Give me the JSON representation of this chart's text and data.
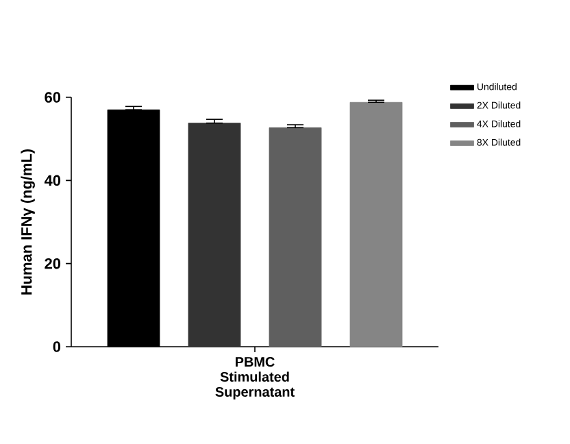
{
  "chart_data": {
    "type": "bar",
    "ylabel": "Human IFNγ (ng/mL)",
    "categories": [
      "PBMC Stimulated Supernatant"
    ],
    "series": [
      {
        "name": "Undiluted",
        "color": "#000000",
        "values": [
          57.0
        ],
        "errors": [
          [
            57.0,
            57.8
          ]
        ]
      },
      {
        "name": "2X Diluted",
        "color": "#333333",
        "values": [
          53.8
        ],
        "errors": [
          [
            53.8,
            54.7
          ]
        ]
      },
      {
        "name": "4X Diluted",
        "color": "#5f5f5f",
        "values": [
          52.7
        ],
        "errors": [
          [
            52.7,
            53.4
          ]
        ]
      },
      {
        "name": "8X Diluted",
        "color": "#858585",
        "values": [
          58.8
        ],
        "errors": [
          [
            58.8,
            59.3
          ]
        ]
      }
    ],
    "ylim": [
      0,
      60
    ],
    "yticks": [
      0,
      20,
      40,
      60
    ],
    "legend": "top right",
    "grid": false
  }
}
